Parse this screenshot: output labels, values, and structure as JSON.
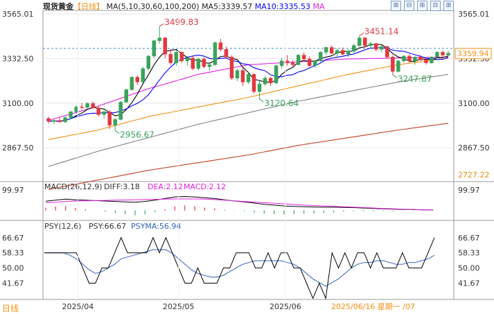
{
  "header": {
    "instrument": "现货黄金",
    "period_tag": "【日线】",
    "ma_label": "MA(5,10,30,60,100,200)",
    "ma5": "MA5:3339.57",
    "ma10": "MA10:3335.53",
    "ma_more": "MA"
  },
  "toolbar": {
    "buttons": [
      "⊞",
      "⊟",
      "⊞",
      "⊟",
      "⊞"
    ]
  },
  "footer": {
    "period": "日线",
    "cursor": "2025/06/16 星期一 /07"
  },
  "colors": {
    "up": "#3aa35a",
    "down": "#e3383e",
    "ma5": "#000000",
    "ma10": "#0000ff",
    "ma30": "#e020e0",
    "ma60": "#f09010",
    "ma100": "#808080",
    "ma200": "#c04020",
    "macd_pos": "#e3383e",
    "macd_neg": "#3aa35a",
    "psy": "#000000",
    "psyma": "#3060c0",
    "label_red": "#e3383e",
    "label_green": "#3aa35a",
    "accent": "#f09010"
  },
  "chart_data": [
    {
      "type": "candlestick",
      "name": "现货黄金 日线",
      "x_labels": [
        "2025/04",
        "2025/05",
        "2025/06"
      ],
      "y_ticks_left": [
        3565.01,
        3332.5,
        3100.0,
        2867.5
      ],
      "y_ticks_right": [
        3565.01,
        3332.5,
        3100.0,
        2867.5,
        2727.22
      ],
      "ylim": [
        2727.22,
        3565.01
      ],
      "last_price": 3359.94,
      "annotations": [
        {
          "text": "3499.83",
          "value": 3499.83,
          "kind": "high"
        },
        {
          "text": "3451.14",
          "value": 3451.14,
          "kind": "high"
        },
        {
          "text": "3120.64",
          "value": 3120.64,
          "kind": "low"
        },
        {
          "text": "3247.87",
          "value": 3247.87,
          "kind": "low"
        },
        {
          "text": "2956.67",
          "value": 2956.67,
          "kind": "low"
        }
      ],
      "candles": [
        [
          3020,
          3030,
          2995,
          3005
        ],
        [
          3005,
          3015,
          2990,
          3010
        ],
        [
          3010,
          3025,
          2998,
          3002
        ],
        [
          3002,
          3030,
          2998,
          3025
        ],
        [
          3025,
          3060,
          3015,
          3055
        ],
        [
          3055,
          3090,
          3045,
          3080
        ],
        [
          3080,
          3100,
          3065,
          3078
        ],
        [
          3078,
          3105,
          3068,
          3098
        ],
        [
          3098,
          3110,
          3070,
          3075
        ],
        [
          3075,
          3085,
          3030,
          3040
        ],
        [
          3040,
          3060,
          3020,
          3055
        ],
        [
          3055,
          3065,
          2965,
          2985
        ],
        [
          2985,
          3025,
          2956.67,
          3015
        ],
        [
          3015,
          3110,
          3010,
          3105
        ],
        [
          3105,
          3175,
          3100,
          3170
        ],
        [
          3170,
          3240,
          3165,
          3235
        ],
        [
          3235,
          3245,
          3195,
          3210
        ],
        [
          3210,
          3290,
          3205,
          3280
        ],
        [
          3280,
          3350,
          3270,
          3345
        ],
        [
          3345,
          3430,
          3335,
          3425
        ],
        [
          3425,
          3499.83,
          3410,
          3440
        ],
        [
          3440,
          3445,
          3335,
          3355
        ],
        [
          3355,
          3380,
          3300,
          3310
        ],
        [
          3310,
          3375,
          3295,
          3365
        ],
        [
          3365,
          3370,
          3310,
          3320
        ],
        [
          3320,
          3345,
          3295,
          3335
        ],
        [
          3335,
          3345,
          3270,
          3280
        ],
        [
          3280,
          3335,
          3270,
          3330
        ],
        [
          3330,
          3340,
          3280,
          3290
        ],
        [
          3290,
          3315,
          3270,
          3300
        ],
        [
          3300,
          3420,
          3295,
          3415
        ],
        [
          3415,
          3435,
          3370,
          3380
        ],
        [
          3380,
          3395,
          3330,
          3340
        ],
        [
          3340,
          3350,
          3220,
          3230
        ],
        [
          3230,
          3280,
          3215,
          3270
        ],
        [
          3270,
          3285,
          3190,
          3210
        ],
        [
          3210,
          3260,
          3200,
          3250
        ],
        [
          3250,
          3255,
          3150,
          3160
        ],
        [
          3160,
          3215,
          3120.64,
          3200
        ],
        [
          3200,
          3240,
          3190,
          3230
        ],
        [
          3230,
          3235,
          3190,
          3205
        ],
        [
          3205,
          3300,
          3200,
          3295
        ],
        [
          3295,
          3335,
          3280,
          3320
        ],
        [
          3320,
          3350,
          3295,
          3310
        ],
        [
          3310,
          3325,
          3290,
          3300
        ],
        [
          3300,
          3355,
          3295,
          3350
        ],
        [
          3350,
          3365,
          3320,
          3330
        ],
        [
          3330,
          3345,
          3290,
          3295
        ],
        [
          3295,
          3325,
          3285,
          3320
        ],
        [
          3320,
          3370,
          3315,
          3365
        ],
        [
          3365,
          3395,
          3350,
          3390
        ],
        [
          3390,
          3400,
          3355,
          3360
        ],
        [
          3360,
          3385,
          3345,
          3375
        ],
        [
          3375,
          3390,
          3350,
          3355
        ],
        [
          3355,
          3380,
          3340,
          3370
        ],
        [
          3370,
          3410,
          3360,
          3400
        ],
        [
          3400,
          3451.14,
          3395,
          3440
        ],
        [
          3440,
          3445,
          3390,
          3400
        ],
        [
          3400,
          3420,
          3385,
          3410
        ],
        [
          3410,
          3415,
          3370,
          3380
        ],
        [
          3380,
          3400,
          3365,
          3395
        ],
        [
          3395,
          3398,
          3330,
          3340
        ],
        [
          3340,
          3350,
          3247.87,
          3265
        ],
        [
          3265,
          3325,
          3260,
          3320
        ],
        [
          3320,
          3350,
          3310,
          3345
        ],
        [
          3345,
          3355,
          3310,
          3320
        ],
        [
          3320,
          3345,
          3300,
          3340
        ],
        [
          3340,
          3350,
          3320,
          3325
        ],
        [
          3325,
          3335,
          3300,
          3310
        ],
        [
          3310,
          3345,
          3305,
          3340
        ],
        [
          3340,
          3370,
          3335,
          3365
        ],
        [
          3365,
          3375,
          3340,
          3350
        ],
        [
          3350,
          3372,
          3345,
          3360
        ]
      ],
      "series": [
        {
          "name": "MA5",
          "last": 3339.57
        },
        {
          "name": "MA10",
          "last": 3335.53
        },
        {
          "name": "MA30",
          "values": [
            3010,
            3085,
            3175,
            3250,
            3300,
            3315,
            3330,
            3335,
            3340
          ],
          "at": [
            0,
            9,
            18,
            27,
            36,
            45,
            54,
            63,
            72
          ]
        },
        {
          "name": "MA60",
          "values": [
            2910,
            2960,
            3030,
            3080,
            3130,
            3190,
            3250,
            3300,
            3335
          ],
          "at": [
            0,
            9,
            18,
            27,
            36,
            45,
            54,
            63,
            72
          ]
        },
        {
          "name": "MA100",
          "values": [
            2770,
            2850,
            2920,
            2990,
            3050,
            3110,
            3160,
            3210,
            3250
          ],
          "at": [
            0,
            9,
            18,
            27,
            36,
            45,
            54,
            63,
            72
          ]
        },
        {
          "name": "MA200",
          "values": [
            2650,
            2700,
            2750,
            2790,
            2830,
            2880,
            2920,
            2960,
            2995
          ],
          "at": [
            0,
            9,
            18,
            27,
            36,
            45,
            54,
            63,
            72
          ]
        }
      ]
    },
    {
      "type": "bar",
      "name": "MACD(26,12,9)",
      "label": "MACD(26,12,9)",
      "diff": "DIFF:3.18",
      "dea": "DEA:2.12",
      "macd": "MACD:2.12",
      "y_ticks": [
        99.97
      ],
      "ylim": [
        -35,
        99.97
      ],
      "diff_line": [
        45,
        50,
        55,
        52,
        50,
        48,
        46,
        44,
        42,
        40,
        44,
        50,
        58,
        66,
        68,
        66,
        62,
        58,
        52,
        46,
        42,
        36,
        30,
        26,
        22,
        20,
        18,
        17,
        16,
        16,
        15,
        14,
        12,
        10,
        8,
        6,
        5,
        4,
        3,
        3.18
      ],
      "dea_line": [
        38,
        40,
        44,
        46,
        47,
        48,
        49,
        50,
        51,
        52,
        53,
        54,
        55,
        56,
        56,
        56,
        55,
        53,
        50,
        47,
        44,
        41,
        38,
        35,
        32,
        29,
        26,
        24,
        22,
        20,
        18,
        16,
        14,
        12,
        10,
        8,
        6,
        5,
        3,
        2.12
      ],
      "hist": [
        14,
        20,
        22,
        12,
        6,
        0,
        -6,
        -12,
        -18,
        -24,
        -18,
        -8,
        6,
        20,
        24,
        20,
        14,
        10,
        4,
        -2,
        -4,
        -10,
        -16,
        -18,
        -20,
        -18,
        -16,
        -14,
        -12,
        -10,
        -6,
        -4,
        -4,
        -4,
        -4,
        -4,
        -2,
        -2,
        0,
        2.12
      ]
    },
    {
      "type": "line",
      "name": "PSY(12,6)",
      "label": "PSY(12,6)",
      "psy": "PSY:66.67",
      "psyma": "PSYMA:56.94",
      "y_ticks": [
        66.67,
        58.33,
        50.0,
        41.67
      ],
      "ylim": [
        35,
        70
      ],
      "psy_line": [
        58.33,
        58.33,
        58.33,
        58.33,
        58.33,
        58.33,
        50,
        41.67,
        41.67,
        50,
        50,
        58.33,
        66.67,
        58.33,
        58.33,
        58.33,
        58.33,
        66.67,
        58.33,
        66.67,
        58.33,
        50,
        41.67,
        41.67,
        50,
        41.67,
        41.67,
        41.67,
        50,
        50,
        58.33,
        58.33,
        58.33,
        50,
        50,
        58.33,
        50,
        58.33,
        58.33,
        50,
        50,
        41.67,
        33.33,
        41.67,
        33.33,
        58.33,
        50,
        58.33,
        50,
        58.33,
        58.33,
        50,
        58.33,
        50,
        50,
        50,
        58.33,
        50,
        50,
        50,
        58.33,
        66.67
      ],
      "psyma_line": [
        58.33,
        58.33,
        58.33,
        58.33,
        57,
        55,
        52,
        49,
        47,
        48,
        50,
        52,
        55,
        56,
        57,
        58,
        59,
        60,
        60,
        60,
        58,
        55,
        52,
        49,
        47,
        46,
        45,
        45,
        46,
        48,
        50,
        52,
        53,
        54,
        54,
        54,
        54,
        54,
        53,
        52,
        50,
        47,
        44,
        42,
        40,
        42,
        44,
        47,
        50,
        52,
        53,
        53,
        54,
        54,
        53,
        52,
        52,
        53,
        53,
        54,
        55,
        56.94
      ]
    }
  ]
}
